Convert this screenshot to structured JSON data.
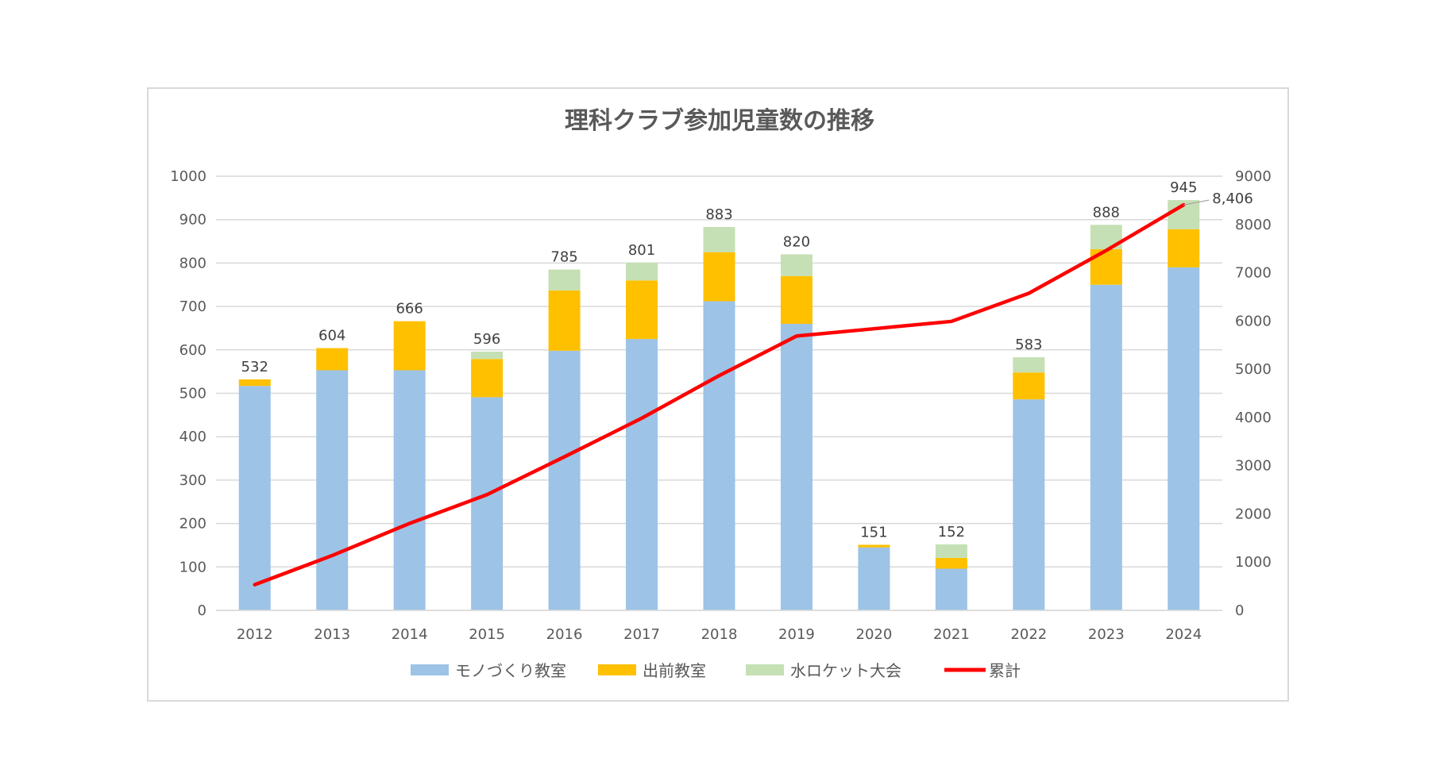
{
  "chart_data": {
    "type": "bar",
    "stacked": true,
    "title": "理科クラブ参加児童数の推移",
    "categories": [
      "2012",
      "2013",
      "2014",
      "2015",
      "2016",
      "2017",
      "2018",
      "2019",
      "2020",
      "2021",
      "2022",
      "2023",
      "2024"
    ],
    "series": [
      {
        "name": "モノづくり教室",
        "color": "#9dc3e6",
        "values": [
          517,
          553,
          553,
          491,
          598,
          625,
          712,
          660,
          145,
          96,
          486,
          750,
          790
        ]
      },
      {
        "name": "出前教室",
        "color": "#ffc000",
        "values": [
          15,
          51,
          113,
          88,
          139,
          135,
          113,
          110,
          6,
          25,
          62,
          82,
          88
        ]
      },
      {
        "name": "水ロケット大会",
        "color": "#c5e0b4",
        "values": [
          0,
          0,
          0,
          17,
          48,
          41,
          58,
          50,
          0,
          31,
          35,
          56,
          67
        ]
      }
    ],
    "totals": [
      532,
      604,
      666,
      596,
      785,
      801,
      883,
      820,
      151,
      152,
      583,
      888,
      945
    ],
    "total_labels": [
      "532",
      "604",
      "666",
      "596",
      "785",
      "801",
      "883",
      "820",
      "151",
      "152",
      "583",
      "888",
      "945"
    ],
    "line_series": {
      "name": "累計",
      "color": "#ff0000",
      "axis": "secondary",
      "values": [
        532,
        1136,
        1802,
        2398,
        3183,
        3984,
        4867,
        5687,
        5838,
        5990,
        6573,
        7461,
        8406
      ],
      "last_label": "8,406"
    },
    "ylim": [
      0,
      1000
    ],
    "y_ticks": [
      "0",
      "100",
      "200",
      "300",
      "400",
      "500",
      "600",
      "700",
      "800",
      "900",
      "1000"
    ],
    "y2lim": [
      0,
      9000
    ],
    "y2_ticks": [
      "0",
      "1000",
      "2000",
      "3000",
      "4000",
      "5000",
      "6000",
      "7000",
      "8000",
      "9000"
    ],
    "grid": true,
    "legend_position": "bottom"
  }
}
